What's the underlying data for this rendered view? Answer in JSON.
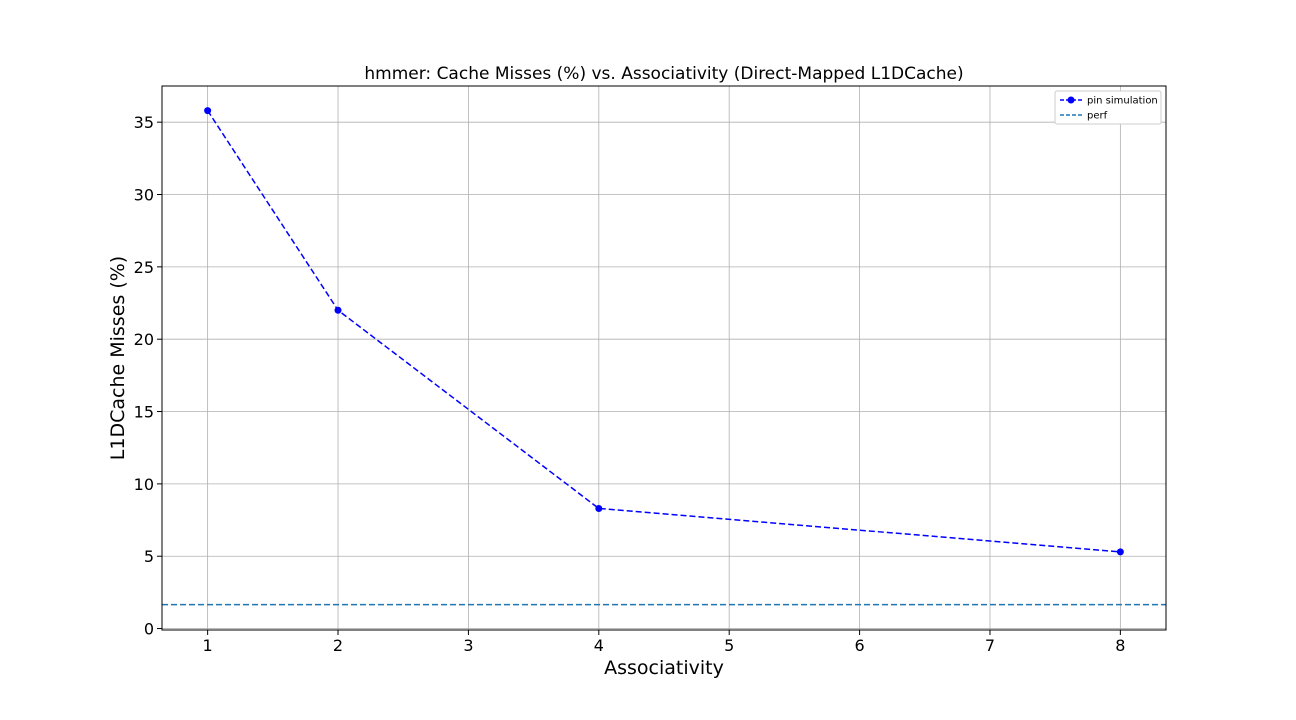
{
  "chart_data": {
    "type": "line",
    "title": "hmmer: Cache Misses (%) vs. Associativity (Direct-Mapped L1DCache)",
    "xlabel": "Associativity",
    "ylabel": "L1DCache Misses (%)",
    "xlim": [
      0.65,
      8.35
    ],
    "ylim": [
      -0.1,
      37.5
    ],
    "xticks": [
      1,
      2,
      3,
      4,
      5,
      6,
      7,
      8
    ],
    "yticks": [
      0,
      5,
      10,
      15,
      20,
      25,
      30,
      35
    ],
    "grid": true,
    "legend_position": "top-right",
    "series": [
      {
        "name": "pin simulation",
        "x": [
          1,
          2,
          4,
          8
        ],
        "values": [
          35.8,
          22.0,
          8.3,
          5.3
        ],
        "color": "#0000ff",
        "line_style": "dashed",
        "marker": "circle"
      }
    ],
    "reference_lines": [
      {
        "name": "perf",
        "y": 1.65,
        "color": "#1f77b4",
        "line_style": "dashed"
      }
    ]
  }
}
